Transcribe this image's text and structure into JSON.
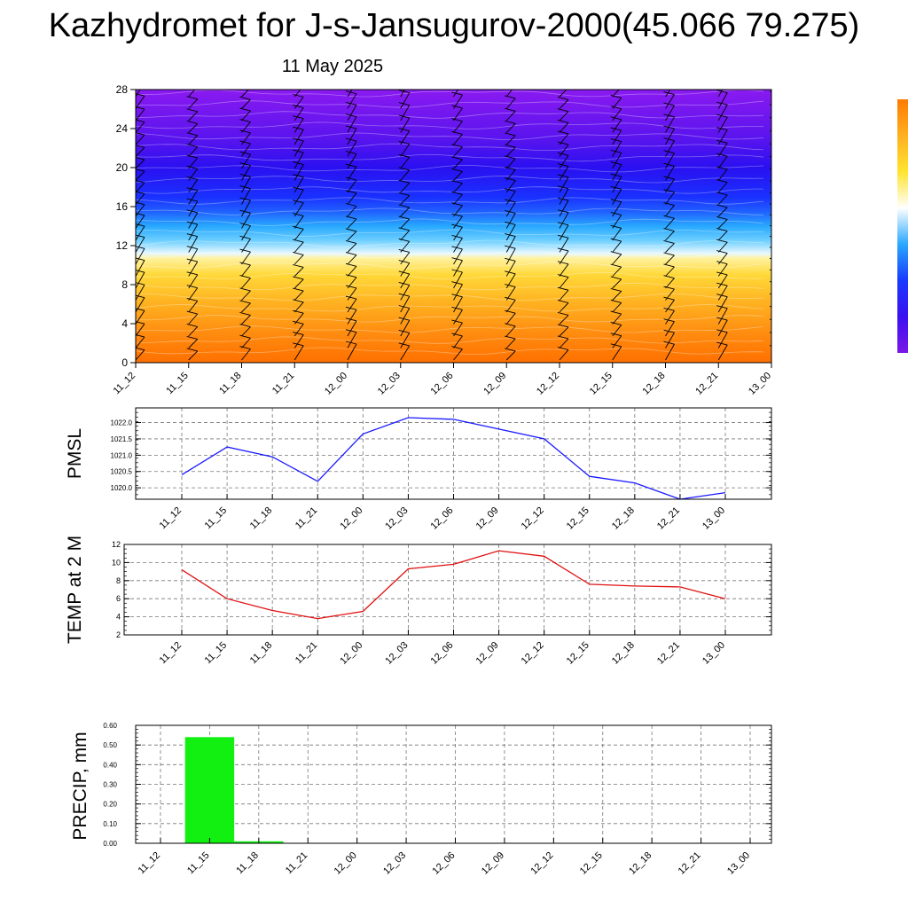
{
  "title": "Kazhydromet for J-s-Jansugurov-2000(45.066 79.275)",
  "subtitle": "11 May 2025",
  "colors": {
    "pmsl_line": "#1a1aff",
    "temp_line": "#e01010",
    "precip_bar": "#12f012",
    "colorbar": [
      "#7a18e8",
      "#3a10f0",
      "#1a3aff",
      "#2aa8ff",
      "#ffffff",
      "#ffe430",
      "#ffb020",
      "#ff7a00"
    ]
  },
  "chart_data": [
    {
      "type": "heatmap",
      "title": "",
      "xlabel": "",
      "ylabel": "",
      "x": [
        "11_12",
        "11_15",
        "11_18",
        "11_21",
        "12_00",
        "12_03",
        "12_06",
        "12_09",
        "12_12",
        "12_15",
        "12_18",
        "12_21",
        "13_00"
      ],
      "yticks": [
        0,
        4,
        8,
        12,
        16,
        20,
        24,
        28
      ],
      "ylim": [
        0,
        28
      ],
      "layers": [
        {
          "level": 0,
          "color": "#ff7000"
        },
        {
          "level": 3,
          "color": "#ff8c10"
        },
        {
          "level": 6,
          "color": "#ffb020"
        },
        {
          "level": 9,
          "color": "#ffd838"
        },
        {
          "level": 10.7,
          "color": "#fff2a0"
        },
        {
          "level": 11.2,
          "color": "#e8f8ff"
        },
        {
          "level": 12.5,
          "color": "#6fd0ff"
        },
        {
          "level": 14,
          "color": "#28a8ff"
        },
        {
          "level": 15.5,
          "color": "#2060ff"
        },
        {
          "level": 17,
          "color": "#1a30ff"
        },
        {
          "level": 20,
          "color": "#2a10f0"
        },
        {
          "level": 23,
          "color": "#5a14ee"
        },
        {
          "level": 28,
          "color": "#8a1af0"
        }
      ],
      "wind_barbs": true
    },
    {
      "type": "line",
      "title": "",
      "ylabel": "PMSL",
      "x": [
        "11_12",
        "11_15",
        "11_18",
        "11_21",
        "12_00",
        "12_03",
        "12_06",
        "12_09",
        "12_12",
        "12_15",
        "12_18",
        "12_21",
        "13_00"
      ],
      "yticks": [
        "1020.0",
        "1020.5",
        "1021.0",
        "1021.5",
        "1022.0"
      ],
      "ylim": [
        1019.65,
        1022.45
      ],
      "series": [
        {
          "values": [
            1020.4,
            1021.25,
            1020.95,
            1020.2,
            1021.65,
            1022.15,
            1022.1,
            1021.8,
            1021.5,
            1020.35,
            1020.15,
            1019.65,
            1019.85
          ]
        }
      ],
      "grid": true
    },
    {
      "type": "line",
      "title": "",
      "ylabel": "TEMP at 2 M",
      "x": [
        "11_12",
        "11_15",
        "11_18",
        "11_21",
        "12_00",
        "12_03",
        "12_06",
        "12_09",
        "12_12",
        "12_15",
        "12_18",
        "12_21",
        "13_00"
      ],
      "yticks": [
        "2",
        "4",
        "6",
        "8",
        "10",
        "12"
      ],
      "ylim": [
        2,
        12
      ],
      "series": [
        {
          "values": [
            9.2,
            6.0,
            4.7,
            3.8,
            4.6,
            9.3,
            9.8,
            11.3,
            10.7,
            7.6,
            7.4,
            7.3,
            6.0
          ]
        }
      ],
      "grid": true
    },
    {
      "type": "bar",
      "title": "",
      "ylabel": "PRECIP, mm",
      "categories": [
        "11_12",
        "11_15",
        "11_18",
        "11_21",
        "12_00",
        "12_03",
        "12_06",
        "12_09",
        "12_12",
        "12_15",
        "12_18",
        "12_21",
        "13_00"
      ],
      "yticks": [
        "0.00",
        "0.10",
        "0.20",
        "0.30",
        "0.40",
        "0.50",
        "0.60"
      ],
      "ylim": [
        0,
        0.6
      ],
      "values": [
        0,
        0.54,
        0.01,
        0,
        0,
        0,
        0,
        0,
        0,
        0,
        0,
        0,
        0
      ],
      "grid": true
    }
  ]
}
